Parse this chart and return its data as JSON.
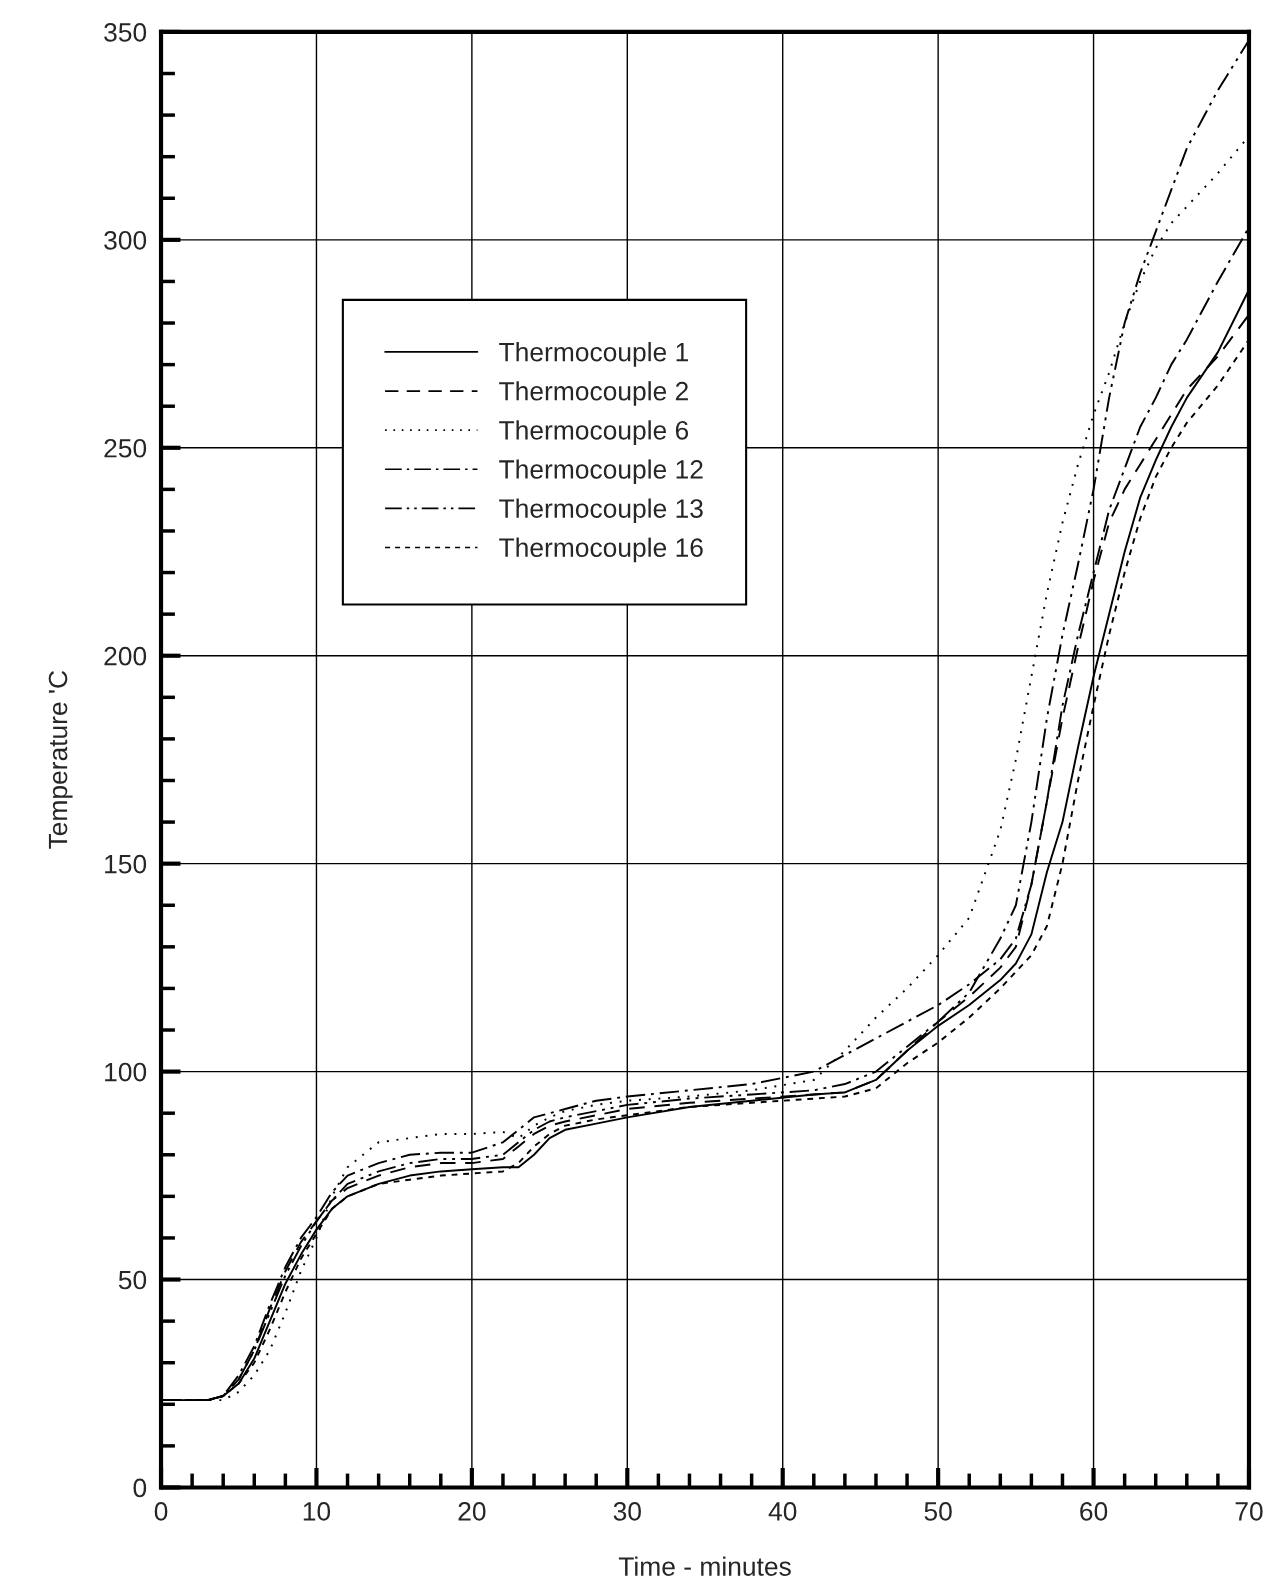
{
  "chart_data": {
    "type": "line",
    "xlabel": "Time - minutes",
    "ylabel": "Temperature 'C",
    "x": [
      0,
      3,
      4,
      5,
      6,
      7,
      8,
      9,
      10,
      11,
      12,
      14,
      16,
      18,
      20,
      22,
      23,
      24,
      25,
      26,
      28,
      30,
      34,
      38,
      42,
      44,
      46,
      48,
      50,
      52,
      54,
      55,
      56,
      57,
      58,
      59,
      60,
      61,
      62,
      63,
      64,
      65,
      66,
      68,
      70
    ],
    "series": [
      {
        "name": "Thermocouple 1",
        "color": "#000000",
        "line_style": "solid",
        "values": [
          21,
          21,
          22,
          25,
          31,
          40,
          49,
          56,
          62,
          67,
          70,
          73,
          75,
          76,
          76.5,
          77,
          77,
          80,
          84,
          86,
          87.5,
          89,
          91.5,
          93,
          94.5,
          95,
          98,
          105,
          111,
          116,
          122,
          126,
          133,
          148,
          160,
          178,
          195,
          210,
          225,
          238,
          247,
          255,
          262,
          273,
          288
        ]
      },
      {
        "name": "Thermocouple 2",
        "color": "#000000",
        "line_style": "dashed",
        "values": [
          21,
          21,
          22,
          26,
          33,
          43,
          52,
          59,
          64,
          69,
          72,
          75,
          77,
          78,
          78,
          79,
          82,
          85,
          87,
          88,
          89.5,
          91,
          92.5,
          93.5,
          94.5,
          95,
          98,
          105,
          112,
          118,
          125,
          130,
          145,
          165,
          185,
          202,
          218,
          232,
          240,
          246,
          252,
          258,
          264,
          272,
          282
        ]
      },
      {
        "name": "Thermocouple 6",
        "color": "#000000",
        "line_style": "dotted",
        "values": [
          21,
          21,
          21,
          23,
          27,
          33,
          42,
          52,
          60,
          70,
          77,
          83,
          84,
          85,
          85,
          85.5,
          84,
          87,
          89,
          90.5,
          92,
          93,
          94,
          95.5,
          98,
          105,
          113,
          120,
          128,
          137,
          158,
          175,
          195,
          215,
          232,
          246,
          258,
          268,
          280,
          290,
          298,
          304,
          308,
          316,
          325
        ]
      },
      {
        "name": "Thermocouple 12",
        "color": "#000000",
        "line_style": "dashdot",
        "values": [
          21,
          21,
          22,
          27,
          34,
          44,
          53,
          60,
          65,
          71,
          75,
          78,
          80,
          80.5,
          80.5,
          83,
          86,
          89,
          90,
          91,
          93,
          94,
          95.5,
          97,
          100,
          104,
          108,
          112,
          116,
          121,
          127,
          132,
          145,
          165,
          188,
          205,
          220,
          235,
          245,
          255,
          262,
          270,
          276,
          290,
          303
        ]
      },
      {
        "name": "Thermocouple 13",
        "color": "#000000",
        "line_style": "dashdotdot",
        "values": [
          21,
          21,
          22,
          26,
          33,
          42,
          51,
          58,
          64,
          69,
          73,
          76,
          78,
          79,
          79,
          80,
          83,
          86,
          88,
          89,
          90.5,
          92,
          93.5,
          94.5,
          95.5,
          97,
          100,
          106,
          112,
          119,
          132,
          140,
          160,
          185,
          205,
          222,
          240,
          262,
          280,
          292,
          302,
          312,
          322,
          336,
          348
        ]
      },
      {
        "name": "Thermocouple 16",
        "color": "#000000",
        "line_style": "shortdashed",
        "values": [
          21,
          21,
          22,
          25,
          30,
          38,
          47,
          55,
          61,
          67,
          70,
          73,
          74,
          75,
          75.5,
          76,
          78,
          82,
          85,
          87,
          88.5,
          89.5,
          91.5,
          92.5,
          93.5,
          94,
          96,
          102,
          107,
          113,
          120,
          124,
          128,
          135,
          150,
          170,
          188,
          205,
          220,
          233,
          243,
          250,
          256,
          265,
          276
        ]
      }
    ],
    "xlim": [
      0,
      70
    ],
    "ylim": [
      0,
      350
    ],
    "xticks": [
      0,
      {
        "value": 2,
        "label": null
      },
      {
        "value": 4,
        "label": null
      },
      {
        "value": 6,
        "label": null
      },
      {
        "value": 8,
        "label": null
      },
      10,
      {
        "value": 12,
        "label": null
      },
      {
        "value": 14,
        "label": null
      },
      {
        "value": 16,
        "label": null
      },
      {
        "value": 18,
        "label": null
      },
      20,
      {
        "value": 22,
        "label": null
      },
      {
        "value": 24,
        "label": null
      },
      {
        "value": 26,
        "label": null
      },
      {
        "value": 28,
        "label": null
      },
      30,
      {
        "value": 32,
        "label": null
      },
      {
        "value": 34,
        "label": null
      },
      {
        "value": 36,
        "label": null
      },
      {
        "value": 38,
        "label": null
      },
      40,
      {
        "value": 42,
        "label": null
      },
      {
        "value": 44,
        "label": null
      },
      {
        "value": 46,
        "label": null
      },
      {
        "value": 48,
        "label": null
      },
      50,
      {
        "value": 52,
        "label": null
      },
      {
        "value": 54,
        "label": null
      },
      {
        "value": 56,
        "label": null
      },
      {
        "value": 58,
        "label": null
      },
      60,
      {
        "value": 62,
        "label": null
      },
      {
        "value": 64,
        "label": null
      },
      {
        "value": 66,
        "label": null
      },
      {
        "value": 68,
        "label": null
      },
      70
    ],
    "yticks": [
      0,
      {
        "value": 10,
        "label": null
      },
      {
        "value": 20,
        "label": null
      },
      {
        "value": 30,
        "label": null
      },
      {
        "value": 40,
        "label": null
      },
      50,
      {
        "value": 60,
        "label": null
      },
      {
        "value": 70,
        "label": null
      },
      {
        "value": 80,
        "label": null
      },
      {
        "value": 90,
        "label": null
      },
      100,
      {
        "value": 110,
        "label": null
      },
      {
        "value": 120,
        "label": null
      },
      {
        "value": 130,
        "label": null
      },
      {
        "value": 140,
        "label": null
      },
      150,
      {
        "value": 160,
        "label": null
      },
      {
        "value": 170,
        "label": null
      },
      {
        "value": 180,
        "label": null
      },
      {
        "value": 190,
        "label": null
      },
      200,
      {
        "value": 210,
        "label": null
      },
      {
        "value": 220,
        "label": null
      },
      {
        "value": 230,
        "label": null
      },
      {
        "value": 240,
        "label": null
      },
      250,
      {
        "value": 260,
        "label": null
      },
      {
        "value": 270,
        "label": null
      },
      {
        "value": 280,
        "label": null
      },
      {
        "value": 290,
        "label": null
      },
      300,
      {
        "value": 310,
        "label": null
      },
      {
        "value": 320,
        "label": null
      },
      {
        "value": 330,
        "label": null
      },
      {
        "value": 340,
        "label": null
      },
      350
    ],
    "grid": true,
    "legend": "top left"
  }
}
